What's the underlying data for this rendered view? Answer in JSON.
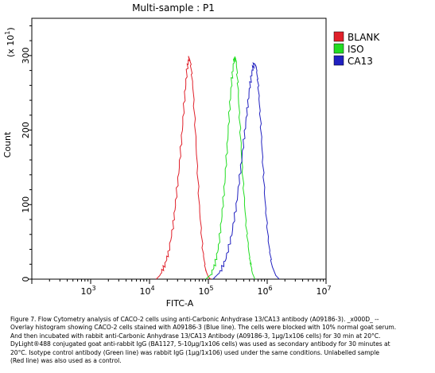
{
  "chart_data": {
    "type": "line",
    "title": "Multi-sample : P1",
    "xlabel": "FITC-A",
    "ylabel": "Count",
    "y_multiplier_label": "(x 10",
    "y_multiplier_exp": "1",
    "x_scale": "log",
    "xlim": [
      100,
      10000000
    ],
    "ylim": [
      0,
      350
    ],
    "x_ticks": [
      {
        "base": "10",
        "exp": "3",
        "value": 1000
      },
      {
        "base": "10",
        "exp": "4",
        "value": 10000
      },
      {
        "base": "10",
        "exp": "5",
        "value": 100000
      },
      {
        "base": "10",
        "exp": "6",
        "value": 1000000
      },
      {
        "base": "10",
        "exp": "7",
        "value": 10000000
      }
    ],
    "y_ticks": [
      {
        "label": "0",
        "value": 0
      },
      {
        "label": "100",
        "value": 100
      },
      {
        "label": "200",
        "value": 200
      },
      {
        "label": "300",
        "value": 300
      }
    ],
    "legend_position": "top-right",
    "series": [
      {
        "name": "BLANK",
        "color": "#e0202a",
        "x": [
          13000,
          15000,
          18000,
          21000,
          25000,
          28000,
          32000,
          36000,
          40000,
          44000,
          47000,
          50000,
          55000,
          62000,
          70000,
          80000,
          90000,
          100000,
          110000
        ],
        "y": [
          0,
          5,
          18,
          35,
          70,
          105,
          150,
          200,
          250,
          285,
          297,
          290,
          255,
          180,
          100,
          40,
          12,
          3,
          0
        ]
      },
      {
        "name": "ISO",
        "color": "#22dd22",
        "x": [
          90000,
          110000,
          130000,
          150000,
          170000,
          190000,
          210000,
          230000,
          250000,
          270000,
          285000,
          300000,
          320000,
          350000,
          390000,
          440000,
          500000,
          560000,
          620000
        ],
        "y": [
          0,
          6,
          20,
          45,
          85,
          130,
          180,
          230,
          268,
          292,
          298,
          290,
          255,
          195,
          130,
          70,
          30,
          8,
          0
        ]
      },
      {
        "name": "CA13",
        "color": "#2020c0",
        "x": [
          120000,
          160000,
          200000,
          250000,
          300000,
          350000,
          400000,
          450000,
          500000,
          550000,
          600000,
          650000,
          700000,
          760000,
          830000,
          920000,
          1050000,
          1200000,
          1400000,
          1600000
        ],
        "y": [
          0,
          10,
          28,
          60,
          100,
          145,
          185,
          222,
          255,
          278,
          290,
          285,
          262,
          220,
          165,
          105,
          50,
          18,
          5,
          0
        ]
      }
    ]
  },
  "caption_lines": [
    "Figure 7. Flow Cytometry analysis of CACO-2 cells using anti-Carbonic Anhydrase 13/CA13 antibody (A09186-3). _x000D_ --",
    "Overlay histogram showing CACO-2 cells stained with A09186-3 (Blue line). The cells were blocked with 10% normal goat serum.",
    "And then incubated with rabbit anti-Carbonic Anhydrase 13/CA13 Antibody (A09186-3, 1μg/1x106 cells) for 30 min at 20°C.",
    "DyLight®488 conjugated goat anti-rabbit IgG (BA1127, 5-10μg/1x106 cells) was used as secondary antibody for 30 minutes at",
    "20°C. Isotype control antibody (Green line) was rabbit IgG (1μg/1x106) used under the same conditions. Unlabelled sample",
    "(Red line) was also used as a control."
  ]
}
